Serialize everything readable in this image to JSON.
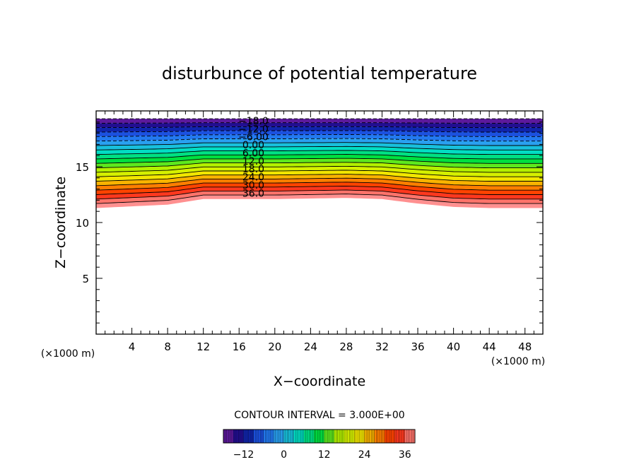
{
  "chart_data": {
    "type": "contour",
    "title": "disturbunce of potential temperature",
    "xlabel": "X−coordinate",
    "ylabel": "Z−coordinate",
    "x_unit_left": "(×1000 m)",
    "x_unit_right": "(×1000 m)",
    "xlim": [
      0,
      50
    ],
    "ylim": [
      0,
      20
    ],
    "x_ticks": [
      4,
      8,
      12,
      16,
      20,
      24,
      28,
      32,
      36,
      40,
      44,
      48
    ],
    "y_ticks": [
      5,
      10,
      15
    ],
    "x_tick_labels": [
      "4",
      "8",
      "12",
      "16",
      "20",
      "24",
      "28",
      "32",
      "36",
      "40",
      "44",
      "48"
    ],
    "y_tick_labels": [
      "5",
      "10",
      "15"
    ],
    "contour_interval_text": "CONTOUR INTERVAL = 3.000E+00",
    "contour_interval": 3,
    "contour_levels": [
      -18,
      -15,
      -12,
      -9,
      -6,
      -3,
      0,
      3,
      6,
      9,
      12,
      15,
      18,
      21,
      24,
      27,
      30,
      33,
      36,
      39
    ],
    "contour_labels": [
      "−18.0",
      "−12.0",
      "−6.00",
      "0.00",
      "6.00",
      "12.0",
      "18.0",
      "24.0",
      "30.0",
      "36.0"
    ],
    "negative_contours_dashed": true,
    "field_top_z": 19.3,
    "bottom_boundary": {
      "x": [
        0,
        8,
        12,
        20,
        28,
        32,
        36,
        40,
        44,
        50
      ],
      "z": [
        11.3,
        11.6,
        12.1,
        12.1,
        12.2,
        12.1,
        11.7,
        11.4,
        11.3,
        11.3
      ]
    },
    "colorbar": {
      "range": [
        -18,
        39
      ],
      "tick_values": [
        -12,
        0,
        12,
        24,
        36
      ],
      "tick_labels": [
        "−12",
        "0",
        "12",
        "24",
        "36"
      ],
      "colors": [
        "#7a1fa2",
        "#0a0a8c",
        "#1e5ef0",
        "#2aa8f0",
        "#00e0c0",
        "#00e040",
        "#b0f000",
        "#f0f000",
        "#ff9000",
        "#ff2000",
        "#ff9090"
      ]
    }
  }
}
